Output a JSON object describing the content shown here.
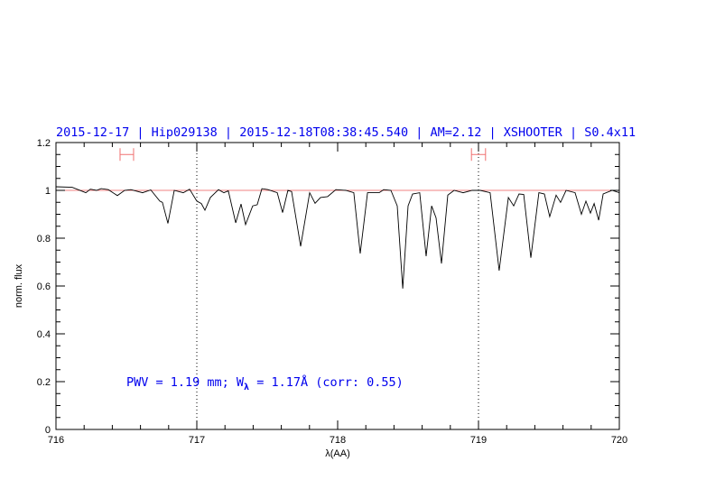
{
  "chart_data": {
    "type": "line",
    "title": "2015-12-17 | Hip029138 | 2015-12-18T08:38:45.540 | AM=2.12 | XSHOOTER | S0.4x11",
    "xlabel": "λ(AA)",
    "ylabel": "norm. flux",
    "xlim": [
      716,
      720
    ],
    "ylim": [
      0,
      1.2
    ],
    "xticks": [
      "716",
      "717",
      "718",
      "719",
      "720"
    ],
    "yticks": [
      "0",
      "0.2",
      "0.4",
      "0.6",
      "0.8",
      "1",
      "1.2"
    ],
    "reference_line": 1.0,
    "vertical_dotted_lines": [
      717,
      719
    ],
    "error_bars": [
      {
        "x_range": [
          716.455,
          716.551
        ],
        "y": 1.15
      },
      {
        "x_range": [
          718.95,
          719.05
        ],
        "y": 1.15
      }
    ],
    "annotation": {
      "pre": "PWV = 1.19 mm; W",
      "sub": "λ",
      "post": " = 1.17Å (corr: 0.55)"
    },
    "colors": {
      "title": "#0000ee",
      "annotation": "#0000ee",
      "error_bars": "#f07070",
      "line": "#000000",
      "reference": "#f08080"
    },
    "series": [
      {
        "x": [
          716.0,
          716.115,
          716.212,
          716.244,
          716.288,
          716.321,
          716.372,
          716.436,
          716.487,
          716.532,
          716.615,
          716.673,
          716.737,
          716.756,
          716.795,
          716.84,
          716.904,
          716.949,
          717.0,
          717.032,
          717.058,
          717.096,
          717.154,
          717.192,
          717.224,
          717.276,
          717.314,
          717.346,
          717.397,
          717.429,
          717.462,
          717.506,
          717.571,
          717.609,
          717.647,
          717.673,
          717.737,
          717.801,
          717.84,
          717.878,
          717.929,
          717.987,
          718.058,
          718.115,
          718.16,
          718.212,
          718.295,
          718.327,
          718.378,
          718.423,
          718.462,
          718.5,
          718.532,
          718.583,
          718.628,
          718.667,
          718.699,
          718.737,
          718.782,
          718.827,
          718.891,
          718.955,
          719.013,
          719.083,
          719.147,
          719.212,
          719.25,
          719.288,
          719.321,
          719.372,
          719.429,
          719.468,
          719.506,
          719.551,
          719.583,
          719.622,
          719.686,
          719.731,
          719.763,
          719.795,
          719.821,
          719.853,
          719.885,
          719.949,
          720.0
        ],
        "y": [
          1.015,
          1.013,
          0.99,
          1.005,
          1.0,
          1.007,
          1.003,
          0.978,
          1.0,
          1.003,
          0.99,
          1.002,
          0.955,
          0.95,
          0.862,
          1.0,
          0.99,
          1.005,
          0.955,
          0.945,
          0.917,
          0.97,
          1.003,
          0.99,
          0.998,
          0.864,
          0.943,
          0.857,
          0.935,
          0.94,
          1.007,
          1.003,
          0.99,
          0.907,
          1.0,
          0.995,
          0.766,
          0.99,
          0.946,
          0.97,
          0.974,
          1.003,
          1.0,
          0.99,
          0.736,
          0.99,
          0.99,
          1.003,
          1.0,
          0.935,
          0.589,
          0.935,
          0.985,
          0.99,
          0.725,
          0.935,
          0.885,
          0.694,
          0.98,
          1.0,
          0.99,
          1.0,
          1.0,
          0.99,
          0.664,
          0.97,
          0.935,
          0.985,
          0.983,
          0.718,
          0.99,
          0.985,
          0.89,
          0.98,
          0.95,
          1.0,
          0.99,
          0.9,
          0.955,
          0.905,
          0.945,
          0.875,
          0.985,
          1.0,
          0.99
        ]
      }
    ]
  }
}
